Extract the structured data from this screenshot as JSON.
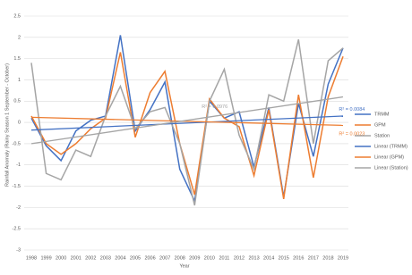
{
  "chart_data": {
    "type": "line",
    "x_label": "Year",
    "y_label": "Rainfall Anomaly (Rainy Season 1 September - October)",
    "x": [
      1998,
      1999,
      2000,
      2001,
      2002,
      2003,
      2004,
      2005,
      2006,
      2007,
      2008,
      2009,
      2010,
      2011,
      2012,
      2013,
      2014,
      2015,
      2016,
      2017,
      2018,
      2019
    ],
    "xlim": [
      1998,
      2019
    ],
    "ylim": [
      -3,
      2.5
    ],
    "yticks": [
      -3,
      -2.5,
      -2,
      -1.5,
      -1,
      -0.5,
      0,
      0.5,
      1,
      1.5,
      2,
      2.5
    ],
    "grid": true,
    "series": [
      {
        "name": "TRMM",
        "color": "#4472c4",
        "values": [
          0.1,
          -0.55,
          -0.9,
          -0.2,
          0.05,
          0.15,
          2.05,
          -0.2,
          0.3,
          0.95,
          -1.1,
          -1.85,
          0.5,
          0.1,
          0.25,
          -1.05,
          0.35,
          -1.75,
          0.45,
          -0.8,
          0.9,
          1.75
        ]
      },
      {
        "name": "GPM",
        "color": "#ed7d31",
        "values": [
          0.15,
          -0.5,
          -0.75,
          -0.5,
          -0.15,
          0.1,
          1.65,
          -0.35,
          0.7,
          1.2,
          -0.5,
          -1.7,
          0.55,
          0.1,
          -0.1,
          -1.25,
          0.3,
          -1.8,
          0.65,
          -1.3,
          0.6,
          1.55
        ]
      },
      {
        "name": "Station",
        "color": "#a5a5a5",
        "values": [
          1.4,
          -1.2,
          -1.35,
          -0.65,
          -0.8,
          0.15,
          0.85,
          -0.15,
          0.25,
          0.35,
          -0.5,
          -1.95,
          0.5,
          1.25,
          -0.3,
          -1.1,
          0.65,
          0.5,
          1.95,
          -0.5,
          1.45,
          1.75
        ]
      }
    ],
    "trendlines": [
      {
        "name": "Linear (TRMM)",
        "color": "#4472c4",
        "values": [
          -0.18,
          0.15
        ],
        "annotation": "R² = 0.0084"
      },
      {
        "name": "Linear (GPM)",
        "color": "#ed7d31",
        "values": [
          0.12,
          -0.07
        ],
        "annotation": "R² = 0.0023"
      },
      {
        "name": "Linear (Station)",
        "color": "#a5a5a5",
        "values": [
          -0.5,
          0.6
        ],
        "annotation": "R² = 0.0976"
      }
    ]
  }
}
